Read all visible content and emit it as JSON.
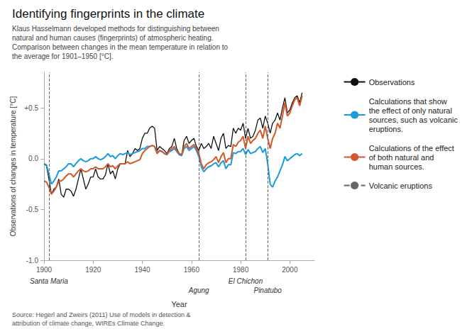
{
  "chart_data": {
    "type": "line",
    "title": "Identifying fingerprints in the climate",
    "subtitle": "Klaus Hasselmann developed methods for distinguishing between\nnatural and human causes (fingerprints) of atmospheric heating.\nComparison between changes in the mean temperature in relation to\nthe average for 1901–1950 [°C].",
    "source": "Source: Hegerl and Zweirs (2011) Use of models in detection &\nattribution of climate change, WIREs Climate Change.",
    "xlabel": "Year",
    "ylabel": "Observations of changes in temperature [°C]",
    "xlim": [
      1900,
      2010
    ],
    "xticks": [
      1900,
      1920,
      1940,
      1960,
      1980,
      2000
    ],
    "ylim": [
      -1.0,
      0.85
    ],
    "yticks": [
      {
        "value": -1.0,
        "label": "-1.0"
      },
      -0.5,
      {
        "value": 0.0,
        "label": "0.0"
      },
      {
        "value": 0.5,
        "label": "+0.5"
      }
    ],
    "grid": false,
    "legend": "right",
    "x": [
      1900,
      1901,
      1902,
      1903,
      1904,
      1905,
      1906,
      1907,
      1908,
      1909,
      1910,
      1911,
      1912,
      1913,
      1914,
      1915,
      1916,
      1917,
      1918,
      1919,
      1920,
      1921,
      1922,
      1923,
      1924,
      1925,
      1926,
      1927,
      1928,
      1929,
      1930,
      1931,
      1932,
      1933,
      1934,
      1935,
      1936,
      1937,
      1938,
      1939,
      1940,
      1941,
      1942,
      1943,
      1944,
      1945,
      1946,
      1947,
      1948,
      1949,
      1950,
      1951,
      1952,
      1953,
      1954,
      1955,
      1956,
      1957,
      1958,
      1959,
      1960,
      1961,
      1962,
      1963,
      1964,
      1965,
      1966,
      1967,
      1968,
      1969,
      1970,
      1971,
      1972,
      1973,
      1974,
      1975,
      1976,
      1977,
      1978,
      1979,
      1980,
      1981,
      1982,
      1983,
      1984,
      1985,
      1986,
      1987,
      1988,
      1989,
      1990,
      1991,
      1992,
      1993,
      1994,
      1995,
      1996,
      1997,
      1998,
      1999,
      2000,
      2001,
      2002,
      2003,
      2004,
      2005
    ],
    "series": [
      {
        "name": "Observations",
        "color": "#111111",
        "values": [
          -0.05,
          -0.07,
          -0.2,
          -0.35,
          -0.3,
          -0.28,
          -0.2,
          -0.35,
          -0.38,
          -0.3,
          -0.3,
          -0.32,
          -0.37,
          -0.3,
          -0.2,
          -0.1,
          -0.2,
          -0.3,
          -0.25,
          -0.18,
          -0.18,
          -0.1,
          -0.18,
          -0.2,
          -0.2,
          -0.16,
          -0.05,
          -0.15,
          -0.12,
          -0.2,
          -0.1,
          -0.05,
          -0.05,
          -0.05,
          0.08,
          0.02,
          0.05,
          0.1,
          0.08,
          0.1,
          0.2,
          0.25,
          0.25,
          0.3,
          0.32,
          0.3,
          0.08,
          0.12,
          0.1,
          0.08,
          0.05,
          0.1,
          0.12,
          0.2,
          0.1,
          0.05,
          0.03,
          0.18,
          0.22,
          0.15,
          0.18,
          0.2,
          0.12,
          0.08,
          0.15,
          0.1,
          0.12,
          0.15,
          0.1,
          0.22,
          0.15,
          0.08,
          0.2,
          0.25,
          0.1,
          0.13,
          0.12,
          0.3,
          0.25,
          0.3,
          0.28,
          0.35,
          0.2,
          0.3,
          0.2,
          0.22,
          0.28,
          0.38,
          0.4,
          0.3,
          0.42,
          0.35,
          0.25,
          0.35,
          0.38,
          0.45,
          0.38,
          0.5,
          0.6,
          0.45,
          0.48,
          0.55,
          0.6,
          0.62,
          0.55,
          0.65
        ]
      },
      {
        "name": "Calculations that show\nthe effect of only natural\nsources, such as volcanic\neruptions.",
        "color": "#1a9bdc",
        "values": [
          -0.05,
          -0.06,
          -0.15,
          -0.25,
          -0.22,
          -0.18,
          -0.12,
          -0.12,
          -0.1,
          -0.08,
          -0.05,
          -0.05,
          -0.08,
          -0.05,
          -0.02,
          0.0,
          -0.02,
          -0.03,
          -0.02,
          0.0,
          0.0,
          0.02,
          0.0,
          -0.01,
          0.0,
          0.02,
          0.05,
          0.02,
          0.03,
          0.0,
          0.03,
          0.05,
          0.04,
          0.05,
          0.06,
          0.04,
          0.05,
          0.06,
          0.07,
          0.08,
          0.1,
          0.1,
          0.12,
          0.12,
          0.13,
          0.12,
          0.06,
          0.08,
          0.07,
          0.05,
          0.04,
          0.07,
          0.08,
          0.1,
          0.07,
          0.04,
          0.03,
          0.1,
          0.12,
          0.08,
          0.1,
          0.12,
          0.08,
          0.02,
          -0.08,
          -0.13,
          -0.1,
          -0.08,
          -0.07,
          -0.05,
          -0.04,
          -0.08,
          -0.04,
          -0.02,
          -0.1,
          -0.06,
          -0.06,
          0.06,
          0.05,
          0.07,
          0.07,
          0.1,
          0.04,
          0.09,
          0.05,
          0.06,
          0.07,
          0.1,
          0.12,
          0.06,
          0.1,
          -0.05,
          -0.25,
          -0.28,
          -0.22,
          -0.18,
          -0.12,
          -0.06,
          0.02,
          -0.02,
          0.0,
          0.02,
          0.04,
          0.05,
          0.03,
          0.05
        ]
      },
      {
        "name": "Calculations of the effect\nof both natural and\nhuman sources.",
        "color": "#d4572a",
        "values": [
          -0.22,
          -0.23,
          -0.28,
          -0.35,
          -0.32,
          -0.28,
          -0.22,
          -0.22,
          -0.2,
          -0.17,
          -0.15,
          -0.15,
          -0.18,
          -0.15,
          -0.12,
          -0.1,
          -0.12,
          -0.13,
          -0.12,
          -0.1,
          -0.1,
          -0.08,
          -0.1,
          -0.1,
          -0.1,
          -0.08,
          -0.05,
          -0.08,
          -0.07,
          -0.1,
          -0.07,
          -0.05,
          -0.05,
          -0.05,
          -0.03,
          -0.05,
          -0.04,
          -0.03,
          -0.02,
          -0.01,
          0.05,
          0.08,
          0.1,
          0.12,
          0.13,
          0.12,
          0.05,
          0.08,
          0.07,
          0.05,
          0.04,
          0.08,
          0.1,
          0.12,
          0.08,
          0.05,
          0.04,
          0.12,
          0.15,
          0.1,
          0.12,
          0.14,
          0.1,
          0.05,
          -0.05,
          -0.1,
          -0.06,
          -0.04,
          -0.03,
          -0.01,
          0.02,
          -0.04,
          0.02,
          0.06,
          -0.04,
          0.0,
          0.0,
          0.14,
          0.12,
          0.16,
          0.18,
          0.22,
          0.1,
          0.22,
          0.15,
          0.18,
          0.2,
          0.25,
          0.28,
          0.2,
          0.32,
          0.2,
          0.1,
          0.2,
          0.25,
          0.35,
          0.3,
          0.42,
          0.55,
          0.42,
          0.45,
          0.52,
          0.58,
          0.6,
          0.52,
          0.62
        ]
      },
      {
        "name": "Volcanic eruptions",
        "type": "vline",
        "color": "#666666",
        "line_style": "dashed",
        "x": [
          1902,
          1963,
          1982,
          1991
        ],
        "labels": [
          "Santa Maria",
          "Agung",
          "El Chichon",
          "Pinatubo"
        ]
      }
    ]
  }
}
